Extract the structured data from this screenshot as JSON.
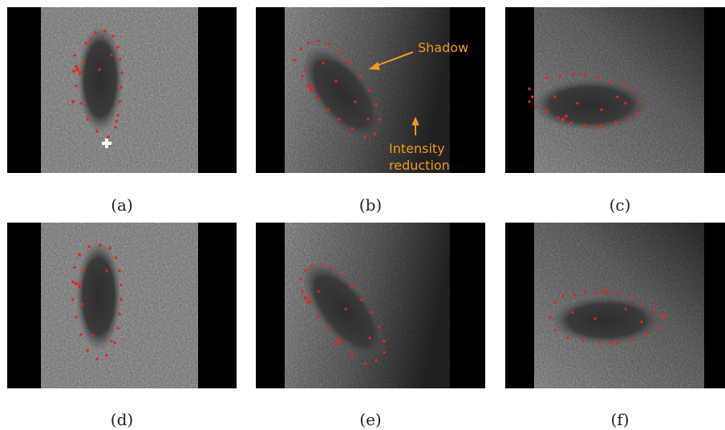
{
  "figure": {
    "panels": [
      {
        "id": "a",
        "caption": "(a)"
      },
      {
        "id": "b",
        "caption": "(b)"
      },
      {
        "id": "c",
        "caption": "(c)"
      },
      {
        "id": "d",
        "caption": "(d)"
      },
      {
        "id": "e",
        "caption": "(e)"
      },
      {
        "id": "f",
        "caption": "(f)"
      }
    ],
    "annotations": {
      "shadow_label": "Shadow",
      "intensity_label_line1": "Intensity",
      "intensity_label_line2": "reduction",
      "color": "#f39a1c"
    },
    "marker_color": "#e8241f",
    "cross_icon": "white-plus-icon"
  }
}
